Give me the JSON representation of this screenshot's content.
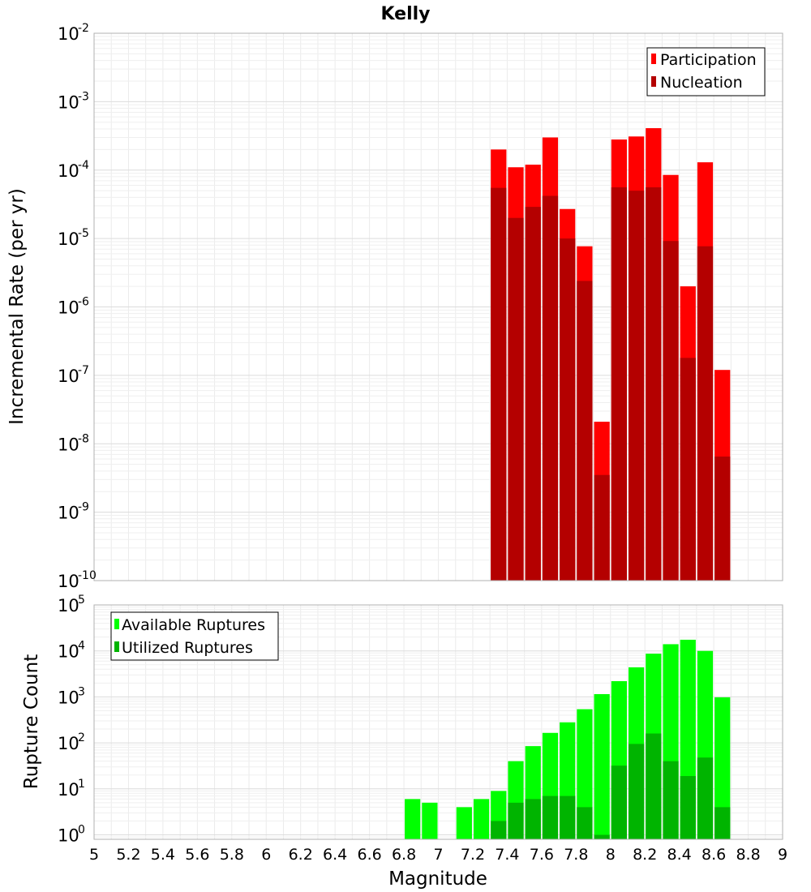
{
  "chart_data": [
    {
      "type": "bar",
      "title": "Kelly",
      "xlabel": "",
      "ylabel": "Incremental Rate (per yr)",
      "yscale": "log",
      "ylim": [
        1e-10,
        0.01
      ],
      "xlim": [
        5,
        9
      ],
      "bin_width": 0.1,
      "y_ticks": [
        {
          "base": "10",
          "exp": "-2"
        },
        {
          "base": "10",
          "exp": "-3"
        },
        {
          "base": "10",
          "exp": "-4"
        },
        {
          "base": "10",
          "exp": "-5"
        },
        {
          "base": "10",
          "exp": "-6"
        },
        {
          "base": "10",
          "exp": "-7"
        },
        {
          "base": "10",
          "exp": "-8"
        },
        {
          "base": "10",
          "exp": "-9"
        },
        {
          "base": "10",
          "exp": "-10"
        }
      ],
      "legend": {
        "position": "top-right",
        "entries": [
          "Participation",
          "Nucleation"
        ]
      },
      "x": [
        7.35,
        7.45,
        7.55,
        7.65,
        7.75,
        7.85,
        7.95,
        8.05,
        8.15,
        8.25,
        8.35,
        8.45,
        8.55,
        8.65
      ],
      "series": [
        {
          "name": "Participation",
          "color": "#ff0000",
          "values": [
            0.0002,
            0.00011,
            0.00012,
            0.0003,
            2.7e-05,
            7.7e-06,
            2.1e-08,
            0.00028,
            0.00031,
            0.00041,
            8.5e-05,
            2e-06,
            0.00013,
            1.2e-07
          ]
        },
        {
          "name": "Nucleation",
          "color": "#b40000",
          "values": [
            5.5e-05,
            2e-05,
            2.9e-05,
            4.2e-05,
            1e-05,
            2.4e-06,
            3.5e-09,
            5.6e-05,
            5e-05,
            5.6e-05,
            9.2e-06,
            1.8e-07,
            7.7e-06,
            6.5e-09
          ]
        }
      ]
    },
    {
      "type": "bar",
      "title": "",
      "xlabel": "Magnitude",
      "ylabel": "Rupture Count",
      "yscale": "log",
      "ylim": [
        0.8,
        100000
      ],
      "xlim": [
        5,
        9
      ],
      "bin_width": 0.1,
      "y_ticks": [
        {
          "base": "10",
          "exp": "5"
        },
        {
          "base": "10",
          "exp": "4"
        },
        {
          "base": "10",
          "exp": "3"
        },
        {
          "base": "10",
          "exp": "2"
        },
        {
          "base": "10",
          "exp": "1"
        },
        {
          "base": "10",
          "exp": "0"
        }
      ],
      "x_ticks": [
        "5",
        "5.2",
        "5.4",
        "5.6",
        "5.8",
        "6",
        "6.2",
        "6.4",
        "6.6",
        "6.8",
        "7",
        "7.2",
        "7.4",
        "7.6",
        "7.8",
        "8",
        "8.2",
        "8.4",
        "8.6",
        "8.8",
        "9"
      ],
      "legend": {
        "position": "top-left",
        "entries": [
          "Available Ruptures",
          "Utilized Ruptures"
        ]
      },
      "x": [
        6.85,
        6.95,
        7.15,
        7.25,
        7.35,
        7.45,
        7.55,
        7.65,
        7.75,
        7.85,
        7.95,
        8.05,
        8.15,
        8.25,
        8.35,
        8.45,
        8.55,
        8.65
      ],
      "series": [
        {
          "name": "Available Ruptures",
          "color": "#00ff00",
          "values": [
            6,
            5,
            4,
            6,
            9,
            40,
            85,
            165,
            280,
            540,
            1150,
            2200,
            4400,
            8700,
            14000,
            17500,
            10000,
            980
          ]
        },
        {
          "name": "Utilized Ruptures",
          "color": "#00b400",
          "values": [
            null,
            null,
            null,
            null,
            2,
            5,
            6,
            7,
            7,
            4,
            1,
            32,
            95,
            160,
            40,
            19,
            48,
            4
          ]
        }
      ]
    }
  ]
}
